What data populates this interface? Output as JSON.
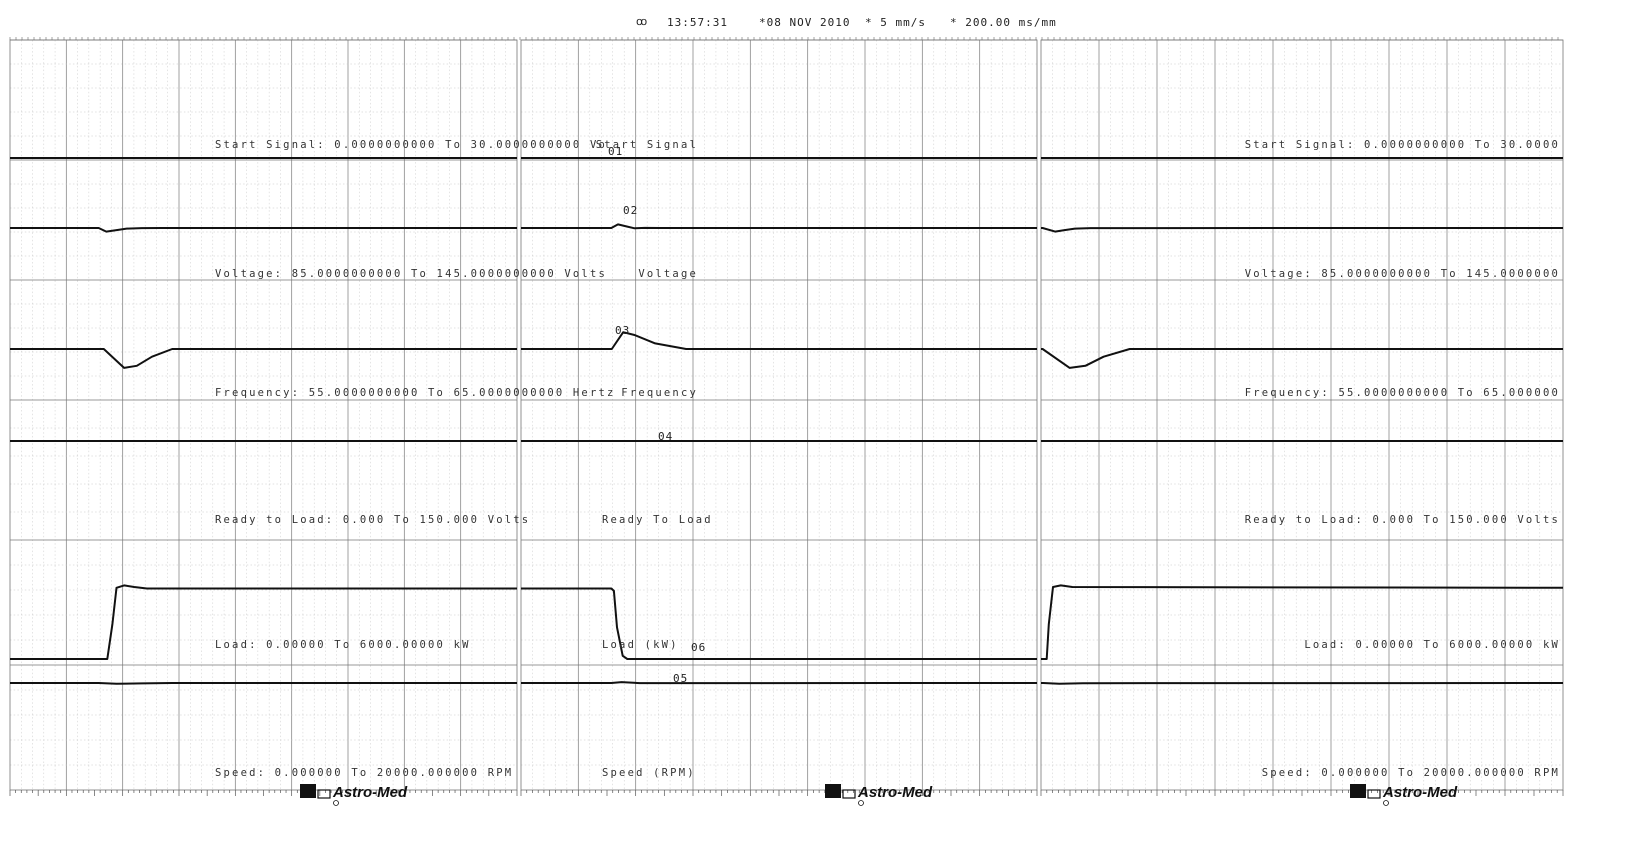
{
  "header": {
    "code": "ꝏ",
    "time": "13:57:31",
    "date": "*08 NOV 2010",
    "speed": "* 5 mm/s",
    "scale": "* 200.00 ms/mm"
  },
  "brand": "Astro-Med",
  "panels": [
    {
      "name": "panel-1"
    },
    {
      "name": "panel-2"
    },
    {
      "name": "panel-3"
    }
  ],
  "channels": [
    {
      "id": "01",
      "name": "Start Signal",
      "left_label": "Start Signal: 0.0000000000 To 30.0000000000 Vo",
      "mid_label": "Start Signal",
      "right_label": "Start Signal: 0.0000000000 To 30.0000"
    },
    {
      "id": "02",
      "name": "Voltage",
      "left_label": "Voltage: 85.0000000000 To 145.0000000000 Volts",
      "mid_label": "Voltage",
      "right_label": "Voltage: 85.0000000000 To 145.0000000"
    },
    {
      "id": "03",
      "name": "Frequency",
      "left_label": "Frequency: 55.0000000000 To 65.0000000000 Hertz",
      "mid_label": "Frequency",
      "right_label": "Frequency: 55.0000000000 To 65.000000"
    },
    {
      "id": "04",
      "name": "Ready To Load",
      "left_label": "Ready to Load: 0.000 To 150.000 Volts",
      "mid_label": "Ready To Load",
      "right_label": "Ready to Load: 0.000 To 150.000 Volts"
    },
    {
      "id": "05",
      "name": "Load (kW)",
      "left_label": "Load: 0.00000 To 6000.00000 kW",
      "mid_label": "Load (kW)",
      "right_label": "Load: 0.00000 To 6000.00000 kW"
    },
    {
      "id": "06",
      "name": "Speed (RPM)",
      "left_label": "Speed: 0.000000 To 20000.000000 RPM",
      "mid_label": "Speed (RPM)",
      "right_label": "Speed: 0.000000 To 20000.000000 RPM"
    }
  ],
  "chart_data": {
    "type": "line",
    "x_unit": "mm of chart",
    "time_scale": "200.00 ms/mm",
    "grid": true,
    "series": [
      {
        "name": "Start Signal",
        "unit": "Volts",
        "range": [
          0,
          30
        ],
        "segments": [
          {
            "panel": 1,
            "x": [
              0,
              100
            ],
            "y": [
              0,
              0
            ]
          },
          {
            "panel": 2,
            "x": [
              0,
              100
            ],
            "y": [
              0,
              0
            ]
          },
          {
            "panel": 3,
            "x": [
              0,
              100
            ],
            "y": [
              0,
              0
            ]
          }
        ]
      },
      {
        "name": "Voltage",
        "unit": "Volts",
        "range": [
          85,
          145
        ],
        "segments": [
          {
            "panel": 1,
            "x": [
              0,
              17.5,
              19,
              21,
              23,
              26,
              30,
              100
            ],
            "y": [
              118,
              118,
              112,
              114.5,
              117,
              117.8,
              118,
              118
            ]
          },
          {
            "panel": 2,
            "x": [
              0,
              17.5,
              18.8,
              20.5,
              22,
              24,
              27,
              100
            ],
            "y": [
              118,
              118,
              124,
              120.5,
              117.5,
              118.2,
              118,
              118
            ]
          },
          {
            "panel": 3,
            "x": [
              0,
              0.3,
              2.7,
              4.5,
              6.5,
              9.5,
              100
            ],
            "y": [
              118,
              118,
              112,
              114.5,
              117,
              117.8,
              118
            ]
          }
        ]
      },
      {
        "name": "Frequency",
        "unit": "Hertz",
        "range": [
          55,
          65
        ],
        "segments": [
          {
            "panel": 1,
            "x": [
              0,
              18.5,
              22.5,
              25,
              28,
              32,
              100
            ],
            "y": [
              60,
              60,
              57.3,
              57.6,
              58.9,
              60,
              60
            ]
          },
          {
            "panel": 2,
            "x": [
              0,
              17.6,
              19.8,
              22,
              26,
              32,
              100
            ],
            "y": [
              60,
              60,
              62.4,
              62,
              60.8,
              60,
              60
            ]
          },
          {
            "panel": 3,
            "x": [
              0,
              0.3,
              5.5,
              8.5,
              12,
              17,
              100
            ],
            "y": [
              60,
              60,
              57.3,
              57.6,
              58.9,
              60,
              60
            ]
          }
        ]
      },
      {
        "name": "Ready To Load",
        "unit": "Volts",
        "range": [
          0,
          150
        ],
        "segments": [
          {
            "panel": 1,
            "x": [
              0,
              100
            ],
            "y": [
              0,
              0
            ]
          },
          {
            "panel": 2,
            "x": [
              0,
              100
            ],
            "y": [
              0,
              0
            ]
          },
          {
            "panel": 3,
            "x": [
              0,
              100
            ],
            "y": [
              0,
              0
            ]
          }
        ]
      },
      {
        "name": "Load (kW)",
        "unit": "kW",
        "range": [
          0,
          6000
        ],
        "segments": [
          {
            "panel": 1,
            "x": [
              0,
              19.2,
              20.2,
              21,
              22.5,
              24.5,
              27,
              100
            ],
            "y": [
              0,
              0,
              2200,
              4500,
              4650,
              4550,
              4450,
              4450
            ]
          },
          {
            "panel": 2,
            "x": [
              0,
              17.5,
              18,
              18.6,
              19.7,
              20.6,
              100
            ],
            "y": [
              4450,
              4450,
              4300,
              2000,
              200,
              0,
              0
            ]
          },
          {
            "panel": 3,
            "x": [
              0,
              1.1,
              1.5,
              2.3,
              3.8,
              6,
              100
            ],
            "y": [
              0,
              0,
              2200,
              4550,
              4650,
              4550,
              4500
            ]
          }
        ]
      },
      {
        "name": "Speed (RPM)",
        "unit": "RPM",
        "range": [
          0,
          20000
        ],
        "segments": [
          {
            "panel": 1,
            "x": [
              0,
              17.5,
              21,
              26,
              32,
              100
            ],
            "y": [
              18700,
              18700,
              18250,
              18450,
              18700,
              18700
            ]
          },
          {
            "panel": 2,
            "x": [
              0,
              17.5,
              19.5,
              23,
              100
            ],
            "y": [
              18700,
              18700,
              19200,
              18650,
              18700
            ]
          },
          {
            "panel": 3,
            "x": [
              0,
              0.4,
              3.5,
              8,
              100
            ],
            "y": [
              18700,
              18700,
              18300,
              18600,
              18700
            ]
          }
        ]
      }
    ]
  }
}
